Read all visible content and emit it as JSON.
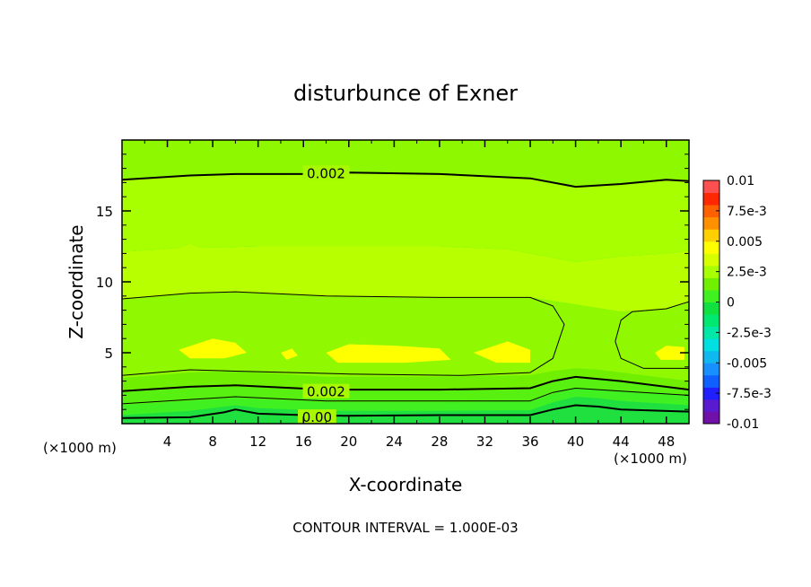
{
  "chart_data": {
    "type": "heatmap",
    "subtype": "filled-contour",
    "title": "disturbunce of Exner",
    "xlabel": "X-coordinate",
    "ylabel": "Z-coordinate",
    "x_unit_left": "(×1000 m)",
    "x_unit_right": "(×1000 m)",
    "xlim": [
      0,
      50
    ],
    "ylim": [
      0,
      20
    ],
    "x_ticks": [
      4,
      8,
      12,
      16,
      20,
      24,
      28,
      32,
      36,
      40,
      44,
      48
    ],
    "x_tick_labels": [
      "4",
      "8",
      "12",
      "16",
      "20",
      "24",
      "28",
      "32",
      "36",
      "40",
      "44",
      "48"
    ],
    "y_ticks": [
      5,
      10,
      15
    ],
    "y_tick_labels": [
      "5",
      "10",
      "15"
    ],
    "contour_interval_text": "CONTOUR INTERVAL = 1.000E-03",
    "contour_labels": [
      {
        "text": "0.002",
        "x": 18,
        "z": 17.7
      },
      {
        "text": "0.002",
        "x": 18,
        "z": 2.3
      },
      {
        "text": "0.00",
        "x": 17.2,
        "z": 0.5
      }
    ],
    "colorbar": {
      "min": -0.01,
      "max": 0.01,
      "levels": [
        -0.01,
        -0.009,
        -0.008,
        -0.007,
        -0.006,
        -0.005,
        -0.004,
        -0.003,
        -0.002,
        -0.001,
        0,
        0.001,
        0.002,
        0.003,
        0.004,
        0.005,
        0.006,
        0.007,
        0.008,
        0.009,
        0.01
      ],
      "colors": [
        "#7010a8",
        "#5a1ad0",
        "#2020ff",
        "#1060ff",
        "#1890ff",
        "#10b8f0",
        "#00e0e0",
        "#00e8a8",
        "#00e870",
        "#10e040",
        "#40f020",
        "#70f000",
        "#a8ff00",
        "#d8ff00",
        "#ffff00",
        "#ffd000",
        "#ff9000",
        "#ff6000",
        "#ff2800",
        "#ff5050",
        "#ff9898"
      ],
      "tick_labels": [
        "0.01",
        "7.5e-3",
        "0.005",
        "2.5e-3",
        "0",
        "-2.5e-3",
        "-0.005",
        "-7.5e-3",
        "-0.01"
      ],
      "tick_values": [
        0.01,
        0.0075,
        0.005,
        0.0025,
        0,
        -0.0025,
        -0.005,
        -0.0075,
        -0.01
      ]
    },
    "bands": [
      {
        "value": 0.0,
        "color": "#20e040",
        "points": [
          [
            0,
            0.2
          ],
          [
            6,
            0.25
          ],
          [
            9,
            0.6
          ],
          [
            10,
            0.9
          ],
          [
            12,
            0.5
          ],
          [
            18,
            0.35
          ],
          [
            28,
            0.4
          ],
          [
            36,
            0.45
          ],
          [
            38,
            0.8
          ],
          [
            40,
            1.2
          ],
          [
            42,
            1.1
          ],
          [
            44,
            0.8
          ],
          [
            50,
            0.7
          ]
        ]
      },
      {
        "value": 0.0005,
        "color": "#40f020",
        "points": [
          [
            0,
            0.6
          ],
          [
            6,
            0.9
          ],
          [
            9,
            1.2
          ],
          [
            10,
            1.3
          ],
          [
            12,
            1.1
          ],
          [
            18,
            0.9
          ],
          [
            28,
            0.9
          ],
          [
            36,
            0.95
          ],
          [
            38,
            1.5
          ],
          [
            40,
            1.9
          ],
          [
            42,
            1.8
          ],
          [
            44,
            1.6
          ],
          [
            50,
            1.3
          ]
        ]
      },
      {
        "value": 0.001,
        "color": "#58f010",
        "points": [
          [
            0,
            1.3
          ],
          [
            6,
            1.6
          ],
          [
            10,
            1.8
          ],
          [
            18,
            1.5
          ],
          [
            28,
            1.5
          ],
          [
            36,
            1.55
          ],
          [
            38,
            2.1
          ],
          [
            40,
            2.5
          ],
          [
            42,
            2.4
          ],
          [
            44,
            2.3
          ],
          [
            50,
            2.0
          ]
        ]
      },
      {
        "value": 0.0015,
        "color": "#70f000",
        "points": [
          [
            0,
            2.2
          ],
          [
            6,
            2.5
          ],
          [
            10,
            2.6
          ],
          [
            18,
            2.3
          ],
          [
            28,
            2.3
          ],
          [
            36,
            2.4
          ],
          [
            38,
            2.9
          ],
          [
            40,
            3.2
          ],
          [
            42,
            3.1
          ],
          [
            44,
            3.0
          ],
          [
            50,
            2.4
          ]
        ]
      },
      {
        "value": 0.002,
        "color": "#90f800",
        "points": [
          [
            0,
            3.2
          ],
          [
            6,
            3.6
          ],
          [
            10,
            3.7
          ],
          [
            18,
            3.3
          ],
          [
            28,
            3.3
          ],
          [
            36,
            3.4
          ],
          [
            38,
            3.7
          ],
          [
            40,
            3.9
          ],
          [
            42,
            3.8
          ],
          [
            44,
            3.6
          ],
          [
            50,
            3.0
          ]
        ]
      },
      {
        "value": 0.0025,
        "color": "#b8ff00",
        "points": [
          [
            0,
            8.8
          ],
          [
            6,
            9.2
          ],
          [
            10,
            9.3
          ],
          [
            18,
            9.0
          ],
          [
            28,
            8.9
          ],
          [
            36,
            8.9
          ],
          [
            40,
            8.4
          ],
          [
            44,
            7.9
          ],
          [
            48,
            8.1
          ],
          [
            50,
            8.6
          ]
        ]
      },
      {
        "value": 0.002,
        "color": "#a8ff00",
        "points": [
          [
            0,
            12.1
          ],
          [
            5,
            12.4
          ],
          [
            6,
            12.7
          ],
          [
            7,
            12.4
          ],
          [
            12,
            12.5
          ],
          [
            20,
            12.5
          ],
          [
            28,
            12.5
          ],
          [
            34,
            12.3
          ],
          [
            36,
            12.0
          ],
          [
            40,
            11.4
          ],
          [
            44,
            11.8
          ],
          [
            48,
            12.0
          ],
          [
            50,
            12.2
          ]
        ]
      },
      {
        "value": 0.0015,
        "color": "#8ef800",
        "points": [
          [
            0,
            17.2
          ],
          [
            6,
            17.5
          ],
          [
            10,
            17.6
          ],
          [
            18,
            17.7
          ],
          [
            28,
            17.6
          ],
          [
            36,
            17.3
          ],
          [
            40,
            16.7
          ],
          [
            44,
            16.9
          ],
          [
            48,
            17.2
          ],
          [
            50,
            17.1
          ]
        ]
      },
      {
        "value": 0.001,
        "color": "#78f400",
        "points": [
          [
            0,
            20
          ],
          [
            50,
            20
          ]
        ]
      }
    ],
    "max_patches": [
      {
        "color": "#ffff00",
        "points": [
          [
            5,
            5.2
          ],
          [
            8,
            6.0
          ],
          [
            10,
            5.7
          ],
          [
            11,
            5.0
          ],
          [
            9,
            4.6
          ],
          [
            6,
            4.6
          ]
        ]
      },
      {
        "color": "#ffff00",
        "points": [
          [
            14,
            5.0
          ],
          [
            15,
            5.3
          ],
          [
            15.5,
            4.8
          ],
          [
            14.5,
            4.5
          ]
        ]
      },
      {
        "color": "#ffff00",
        "points": [
          [
            18,
            5.0
          ],
          [
            20,
            5.6
          ],
          [
            24,
            5.5
          ],
          [
            28,
            5.3
          ],
          [
            29,
            4.5
          ],
          [
            25,
            4.3
          ],
          [
            19,
            4.3
          ]
        ]
      },
      {
        "color": "#ffff00",
        "points": [
          [
            31,
            5.0
          ],
          [
            34,
            5.8
          ],
          [
            36,
            5.2
          ],
          [
            36,
            4.3
          ],
          [
            33,
            4.3
          ]
        ]
      },
      {
        "color": "#ffff00",
        "points": [
          [
            47,
            5.0
          ],
          [
            48,
            5.5
          ],
          [
            49.6,
            5.4
          ],
          [
            49.6,
            4.5
          ],
          [
            47.5,
            4.5
          ]
        ]
      }
    ],
    "contours": [
      {
        "kind": "major",
        "points": [
          [
            0,
            17.2
          ],
          [
            6,
            17.5
          ],
          [
            10,
            17.6
          ],
          [
            16,
            17.6
          ],
          [
            20,
            17.7
          ],
          [
            28,
            17.6
          ],
          [
            36,
            17.3
          ],
          [
            40,
            16.7
          ],
          [
            44,
            16.9
          ],
          [
            48,
            17.2
          ],
          [
            50,
            17.1
          ]
        ]
      },
      {
        "kind": "minor",
        "points": [
          [
            0,
            8.8
          ],
          [
            6,
            9.2
          ],
          [
            10,
            9.3
          ],
          [
            18,
            9.0
          ],
          [
            28,
            8.9
          ],
          [
            36,
            8.9
          ],
          [
            38,
            8.3
          ],
          [
            39,
            7.0
          ],
          [
            38,
            4.6
          ],
          [
            36,
            3.6
          ],
          [
            30,
            3.4
          ],
          [
            20,
            3.5
          ],
          [
            10,
            3.7
          ],
          [
            6,
            3.8
          ],
          [
            0,
            3.4
          ]
        ]
      },
      {
        "kind": "minor",
        "points": [
          [
            50,
            8.6
          ],
          [
            48,
            8.1
          ],
          [
            45,
            7.9
          ],
          [
            44,
            7.3
          ],
          [
            43.5,
            5.8
          ],
          [
            44,
            4.6
          ],
          [
            46,
            3.9
          ],
          [
            50,
            3.9
          ]
        ]
      },
      {
        "kind": "major",
        "points": [
          [
            0,
            2.3
          ],
          [
            6,
            2.6
          ],
          [
            10,
            2.7
          ],
          [
            18,
            2.4
          ],
          [
            28,
            2.4
          ],
          [
            36,
            2.5
          ],
          [
            38,
            3.0
          ],
          [
            40,
            3.3
          ],
          [
            44,
            3.0
          ],
          [
            50,
            2.4
          ]
        ]
      },
      {
        "kind": "minor",
        "points": [
          [
            0,
            1.4
          ],
          [
            6,
            1.7
          ],
          [
            10,
            1.9
          ],
          [
            18,
            1.6
          ],
          [
            28,
            1.6
          ],
          [
            36,
            1.6
          ],
          [
            38,
            2.2
          ],
          [
            40,
            2.5
          ],
          [
            44,
            2.3
          ],
          [
            50,
            2.0
          ]
        ]
      },
      {
        "kind": "major",
        "points": [
          [
            0,
            0.4
          ],
          [
            6,
            0.45
          ],
          [
            9,
            0.8
          ],
          [
            10,
            1.0
          ],
          [
            12,
            0.7
          ],
          [
            18,
            0.55
          ],
          [
            28,
            0.6
          ],
          [
            36,
            0.6
          ],
          [
            38,
            1.0
          ],
          [
            40,
            1.3
          ],
          [
            42,
            1.2
          ],
          [
            44,
            1.0
          ],
          [
            50,
            0.85
          ]
        ]
      }
    ]
  }
}
